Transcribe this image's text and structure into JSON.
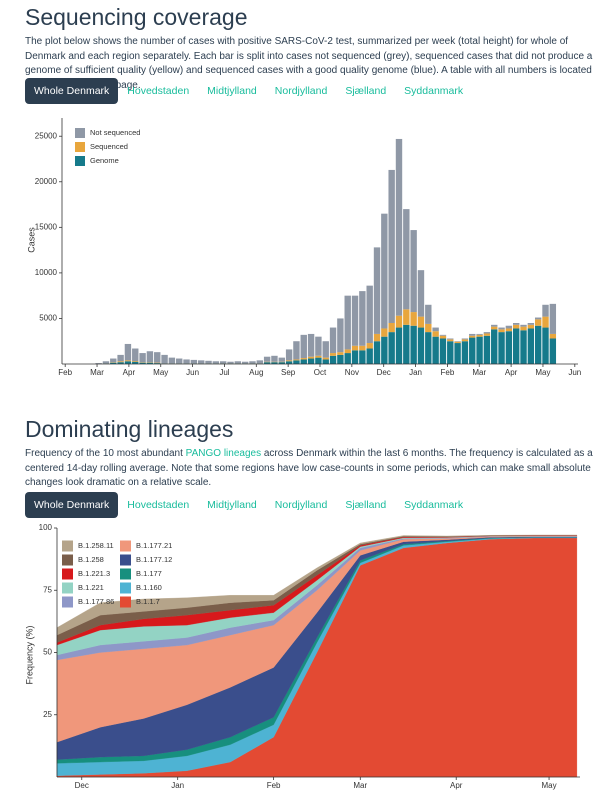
{
  "sections": [
    {
      "title": "Sequencing coverage",
      "description": "The plot below shows the number of cases with positive SARS-CoV-2 test, summarized per week (total height) for whole of Denmark and each region separately. Each bar is split into cases not sequenced (grey), sequenced cases that did not produce a genome of sufficient quality (yellow) and sequenced cases with a good quality genome (blue). A table with all numbers is located at the bottom of this page.",
      "tabs": [
        "Whole Denmark",
        "Hovedstaden",
        "Midtjylland",
        "Nordjylland",
        "Sjælland",
        "Syddanmark"
      ]
    },
    {
      "title": "Dominating lineages",
      "description": {
        "before": "Frequency of the 10 most abundant ",
        "link": "PANGO lineages",
        "after": " across Denmark within the last 6 months. The frequency is calculated as a centered 14-day rolling average. Note that some regions have low case-counts in some periods, which can make small absolute changes look dramatic on a relative scale."
      },
      "tabs": [
        "Whole Denmark",
        "Hovedstaden",
        "Midtjylland",
        "Nordjylland",
        "Sjælland",
        "Syddanmark"
      ]
    }
  ],
  "chart_data": [
    {
      "type": "bar",
      "stacked": true,
      "ylabel": "Cases",
      "legend": "top-left",
      "grid": false,
      "x": [
        1.05,
        1.28,
        1.51,
        1.74,
        1.97,
        2.2,
        2.43,
        2.66,
        2.89,
        3.12,
        3.35,
        3.58,
        3.81,
        4.04,
        4.27,
        4.5,
        4.73,
        4.96,
        5.19,
        5.42,
        5.65,
        5.88,
        6.11,
        6.34,
        6.57,
        6.8,
        7.03,
        7.26,
        7.49,
        7.72,
        7.95,
        8.18,
        8.41,
        8.64,
        8.87,
        9.1,
        9.33,
        9.56,
        9.79,
        10.02,
        10.25,
        10.48,
        10.71,
        10.94,
        11.17,
        11.4,
        11.63,
        11.86,
        12.09,
        12.32,
        12.55,
        12.78,
        13.01,
        13.24,
        13.47,
        13.7,
        13.93,
        14.16,
        14.39,
        14.62,
        14.85,
        15.08,
        15.31
      ],
      "series": [
        {
          "name": "Genome",
          "color": "#167a8b",
          "values": [
            0,
            50,
            150,
            200,
            300,
            250,
            150,
            150,
            100,
            50,
            50,
            50,
            50,
            50,
            50,
            50,
            50,
            50,
            50,
            50,
            50,
            50,
            50,
            200,
            200,
            200,
            300,
            400,
            500,
            600,
            700,
            500,
            900,
            1000,
            1200,
            1500,
            1500,
            1700,
            2500,
            3000,
            3500,
            4000,
            4300,
            4200,
            4000,
            3500,
            3000,
            2800,
            2500,
            2300,
            2500,
            2900,
            3000,
            3100,
            3800,
            3500,
            3600,
            3900,
            3700,
            3900,
            4200,
            4000,
            2800
          ]
        },
        {
          "name": "Sequenced",
          "color": "#e8a63d",
          "values": [
            0,
            20,
            50,
            100,
            100,
            80,
            50,
            50,
            50,
            20,
            20,
            20,
            20,
            20,
            20,
            20,
            20,
            20,
            20,
            20,
            20,
            20,
            20,
            50,
            50,
            50,
            100,
            100,
            150,
            200,
            200,
            200,
            300,
            300,
            400,
            500,
            500,
            600,
            800,
            900,
            1000,
            1300,
            1700,
            1500,
            1200,
            900,
            600,
            300,
            200,
            150,
            200,
            200,
            200,
            250,
            300,
            300,
            300,
            400,
            400,
            400,
            700,
            1200,
            500
          ]
        },
        {
          "name": "Not sequenced",
          "color": "#8f98a6",
          "values": [
            100,
            230,
            400,
            700,
            1800,
            1370,
            1000,
            1200,
            1150,
            930,
            630,
            530,
            430,
            380,
            330,
            280,
            230,
            230,
            180,
            230,
            180,
            230,
            330,
            550,
            650,
            450,
            1200,
            2000,
            2550,
            2500,
            2100,
            1800,
            2800,
            3700,
            5900,
            5500,
            6000,
            6300,
            9500,
            12600,
            16800,
            19400,
            11000,
            9000,
            5100,
            2100,
            400,
            100,
            100,
            50,
            100,
            200,
            100,
            150,
            200,
            200,
            300,
            200,
            200,
            200,
            200,
            1300,
            3300
          ]
        }
      ],
      "xlim": [
        -0.1,
        16.1
      ],
      "xticks": [
        {
          "value": 0,
          "label": "Feb"
        },
        {
          "value": 1,
          "label": "Mar"
        },
        {
          "value": 2,
          "label": "Apr"
        },
        {
          "value": 3,
          "label": "May"
        },
        {
          "value": 4,
          "label": "Jun"
        },
        {
          "value": 5,
          "label": "Jul"
        },
        {
          "value": 6,
          "label": "Aug"
        },
        {
          "value": 7,
          "label": "Sep"
        },
        {
          "value": 8,
          "label": "Oct"
        },
        {
          "value": 9,
          "label": "Nov"
        },
        {
          "value": 10,
          "label": "Dec"
        },
        {
          "value": 11,
          "label": "Jan"
        },
        {
          "value": 12,
          "label": "Feb"
        },
        {
          "value": 13,
          "label": "Mar"
        },
        {
          "value": 14,
          "label": "Apr"
        },
        {
          "value": 15,
          "label": "May"
        },
        {
          "value": 16,
          "label": "Jun"
        }
      ],
      "ylim": [
        0,
        27000
      ],
      "yticks": [
        5000,
        10000,
        15000,
        20000,
        25000
      ]
    },
    {
      "type": "area",
      "stacked": true,
      "ylabel": "Frequency (%)",
      "legend": "top-left",
      "grid": false,
      "x": [
        -8,
        6,
        20,
        34,
        48,
        62,
        76,
        90,
        104,
        118,
        132,
        146,
        160
      ],
      "series": [
        {
          "name": "B.1.1.7",
          "color": "#e34a33",
          "values": [
            0.5,
            1,
            1.5,
            2.5,
            6,
            16,
            50,
            85,
            92,
            94,
            95.5,
            96,
            96
          ]
        },
        {
          "name": "B.1.160",
          "color": "#4eb3d3",
          "values": [
            5,
            5,
            5,
            6,
            7,
            5,
            4,
            1,
            1,
            0.5,
            0.3,
            0.2,
            0.2
          ]
        },
        {
          "name": "B.1.177",
          "color": "#178f7e",
          "values": [
            1.5,
            2,
            2,
            2.5,
            3,
            3,
            2,
            1,
            0.5,
            0.3,
            0.2,
            0.1,
            0.1
          ]
        },
        {
          "name": "B.1.177.12",
          "color": "#3a4e8c",
          "values": [
            7,
            12,
            15,
            18,
            20,
            20,
            10,
            2,
            1,
            0.5,
            0.3,
            0.2,
            0.2
          ]
        },
        {
          "name": "B.1.177.21",
          "color": "#f0977b",
          "values": [
            33,
            30,
            28,
            24,
            21,
            17,
            9,
            2,
            1,
            0.5,
            0.3,
            0.2,
            0.2
          ]
        },
        {
          "name": "B.1.177.86",
          "color": "#8e97c8",
          "values": [
            2,
            3,
            3,
            3,
            3,
            2,
            2,
            1,
            0.3,
            0.2,
            0.1,
            0.1,
            0.1
          ]
        },
        {
          "name": "B.1.221",
          "color": "#93d3c4",
          "values": [
            4,
            6,
            6,
            5,
            4,
            3,
            2,
            0.5,
            0.3,
            0.2,
            0.1,
            0.1,
            0.1
          ]
        },
        {
          "name": "B.1.221.3",
          "color": "#d7191c",
          "values": [
            1,
            2,
            3,
            4,
            3,
            3,
            2,
            0.5,
            0.3,
            0.2,
            0.1,
            0.1,
            0.1
          ]
        },
        {
          "name": "B.1.258",
          "color": "#7a5e4a",
          "values": [
            3,
            4,
            3,
            3,
            3,
            2,
            2,
            0.5,
            0.3,
            0.2,
            0.1,
            0.1,
            0.1
          ]
        },
        {
          "name": "B.1.258.11",
          "color": "#b5a48a",
          "values": [
            3,
            5,
            5,
            4,
            3,
            2,
            1,
            0.5,
            0.3,
            0.2,
            0.1,
            0.1,
            0.1
          ]
        }
      ],
      "xlim": [
        -8,
        161
      ],
      "xticks": [
        {
          "value": 0,
          "label": "Dec"
        },
        {
          "value": 31,
          "label": "Jan"
        },
        {
          "value": 62,
          "label": "Feb"
        },
        {
          "value": 90,
          "label": "Mar"
        },
        {
          "value": 121,
          "label": "Apr"
        },
        {
          "value": 151,
          "label": "May"
        }
      ],
      "ylim": [
        0,
        100
      ],
      "yticks": [
        25,
        50,
        75,
        100
      ]
    }
  ]
}
